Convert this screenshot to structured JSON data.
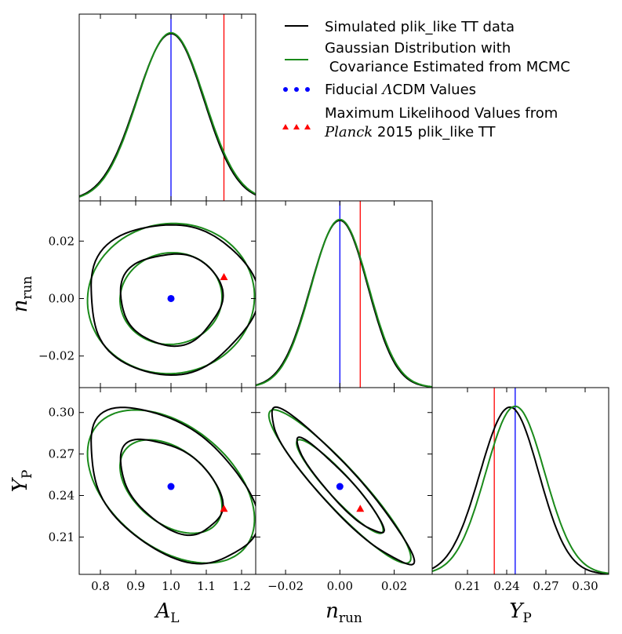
{
  "chart_data": {
    "type": "corner",
    "params": [
      {
        "key": "AL",
        "symbol": "A",
        "sub": "L",
        "range": [
          0.74,
          1.24
        ],
        "ticks": [
          0.8,
          0.9,
          1.0,
          1.1,
          1.2
        ],
        "tick_labels": [
          "0.8",
          "0.9",
          "1.0",
          "1.1",
          "1.2"
        ],
        "fiducial": 1.0,
        "maxlike": 1.15,
        "sigma": 0.095
      },
      {
        "key": "nrun",
        "symbol": "n",
        "sub": "run",
        "range": [
          -0.031,
          0.034
        ],
        "ticks": [
          -0.02,
          0.0,
          0.02
        ],
        "tick_labels": [
          "−0.02",
          "0.00",
          "0.02"
        ],
        "fiducial": 0.0,
        "maxlike": 0.0075,
        "sigma": 0.0105
      },
      {
        "key": "YP",
        "symbol": "Y",
        "sub": "P",
        "range": [
          0.183,
          0.318
        ],
        "ticks": [
          0.21,
          0.24,
          0.27,
          0.3
        ],
        "tick_labels": [
          "0.21",
          "0.24",
          "0.27",
          "0.30"
        ],
        "fiducial": 0.2465,
        "maxlike": 0.2305,
        "sigma": 0.0225
      }
    ],
    "correlations": {
      "AL_nrun": 0.0,
      "AL_YP": -0.45,
      "nrun_YP": -0.93
    },
    "series": [
      {
        "name": "Simulated plik_like TT data",
        "color": "#000000"
      },
      {
        "name": "Gaussian Distribution with\n Covariance Estimated from MCMC",
        "color": "#1a8a1a"
      }
    ],
    "markers": [
      {
        "name": "Fiducial ΛCDM Values",
        "color": "#0000ff",
        "shape": "circle"
      },
      {
        "name": "Maximum Likelihood Values from Planck 2015 plik_like TT",
        "color": "#ff0000",
        "shape": "triangle"
      }
    ]
  },
  "legend": {
    "line1": "Simulated plik_like TT data",
    "line2a": "Gaussian Distribution with",
    "line2b": " Covariance Estimated from MCMC",
    "line3_pre": "Fiducial ",
    "line3_lambda": "Λ",
    "line3_post": "CDM Values",
    "line4a": "Maximum Likelihood Values from",
    "line4b_it": "Planck",
    "line4b_post": " 2015 plik_like TT"
  },
  "colors": {
    "black": "#000000",
    "green": "#1a8a1a",
    "blue": "#0000ff",
    "red": "#ff0000"
  }
}
